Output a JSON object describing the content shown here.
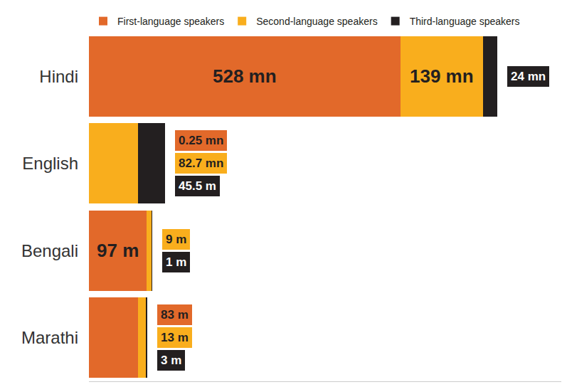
{
  "chart_data": {
    "type": "bar",
    "orientation": "horizontal",
    "stacked": true,
    "categories": [
      "Hindi",
      "English",
      "Bengali",
      "Marathi"
    ],
    "series": [
      {
        "name": "First-language speakers",
        "color": "#E2692A",
        "values": [
          528,
          0.25,
          97,
          83
        ],
        "value_labels": [
          "528 mn",
          "0.25 mn",
          "97 m",
          "83 m"
        ]
      },
      {
        "name": "Second-language speakers",
        "color": "#F9AE1D",
        "values": [
          139,
          82.7,
          9,
          13
        ],
        "value_labels": [
          "139 mn",
          "82.7 mn",
          "9 m",
          "13 m"
        ]
      },
      {
        "name": "Third-language speakers",
        "color": "#231F20",
        "values": [
          24,
          45.5,
          1,
          3
        ],
        "value_labels": [
          "24 mn",
          "45.5 m",
          "1 m",
          "3 m"
        ]
      }
    ],
    "xlim": [
      0,
      800
    ],
    "data_labels": true,
    "tick_labels": "y",
    "legend": "top"
  }
}
